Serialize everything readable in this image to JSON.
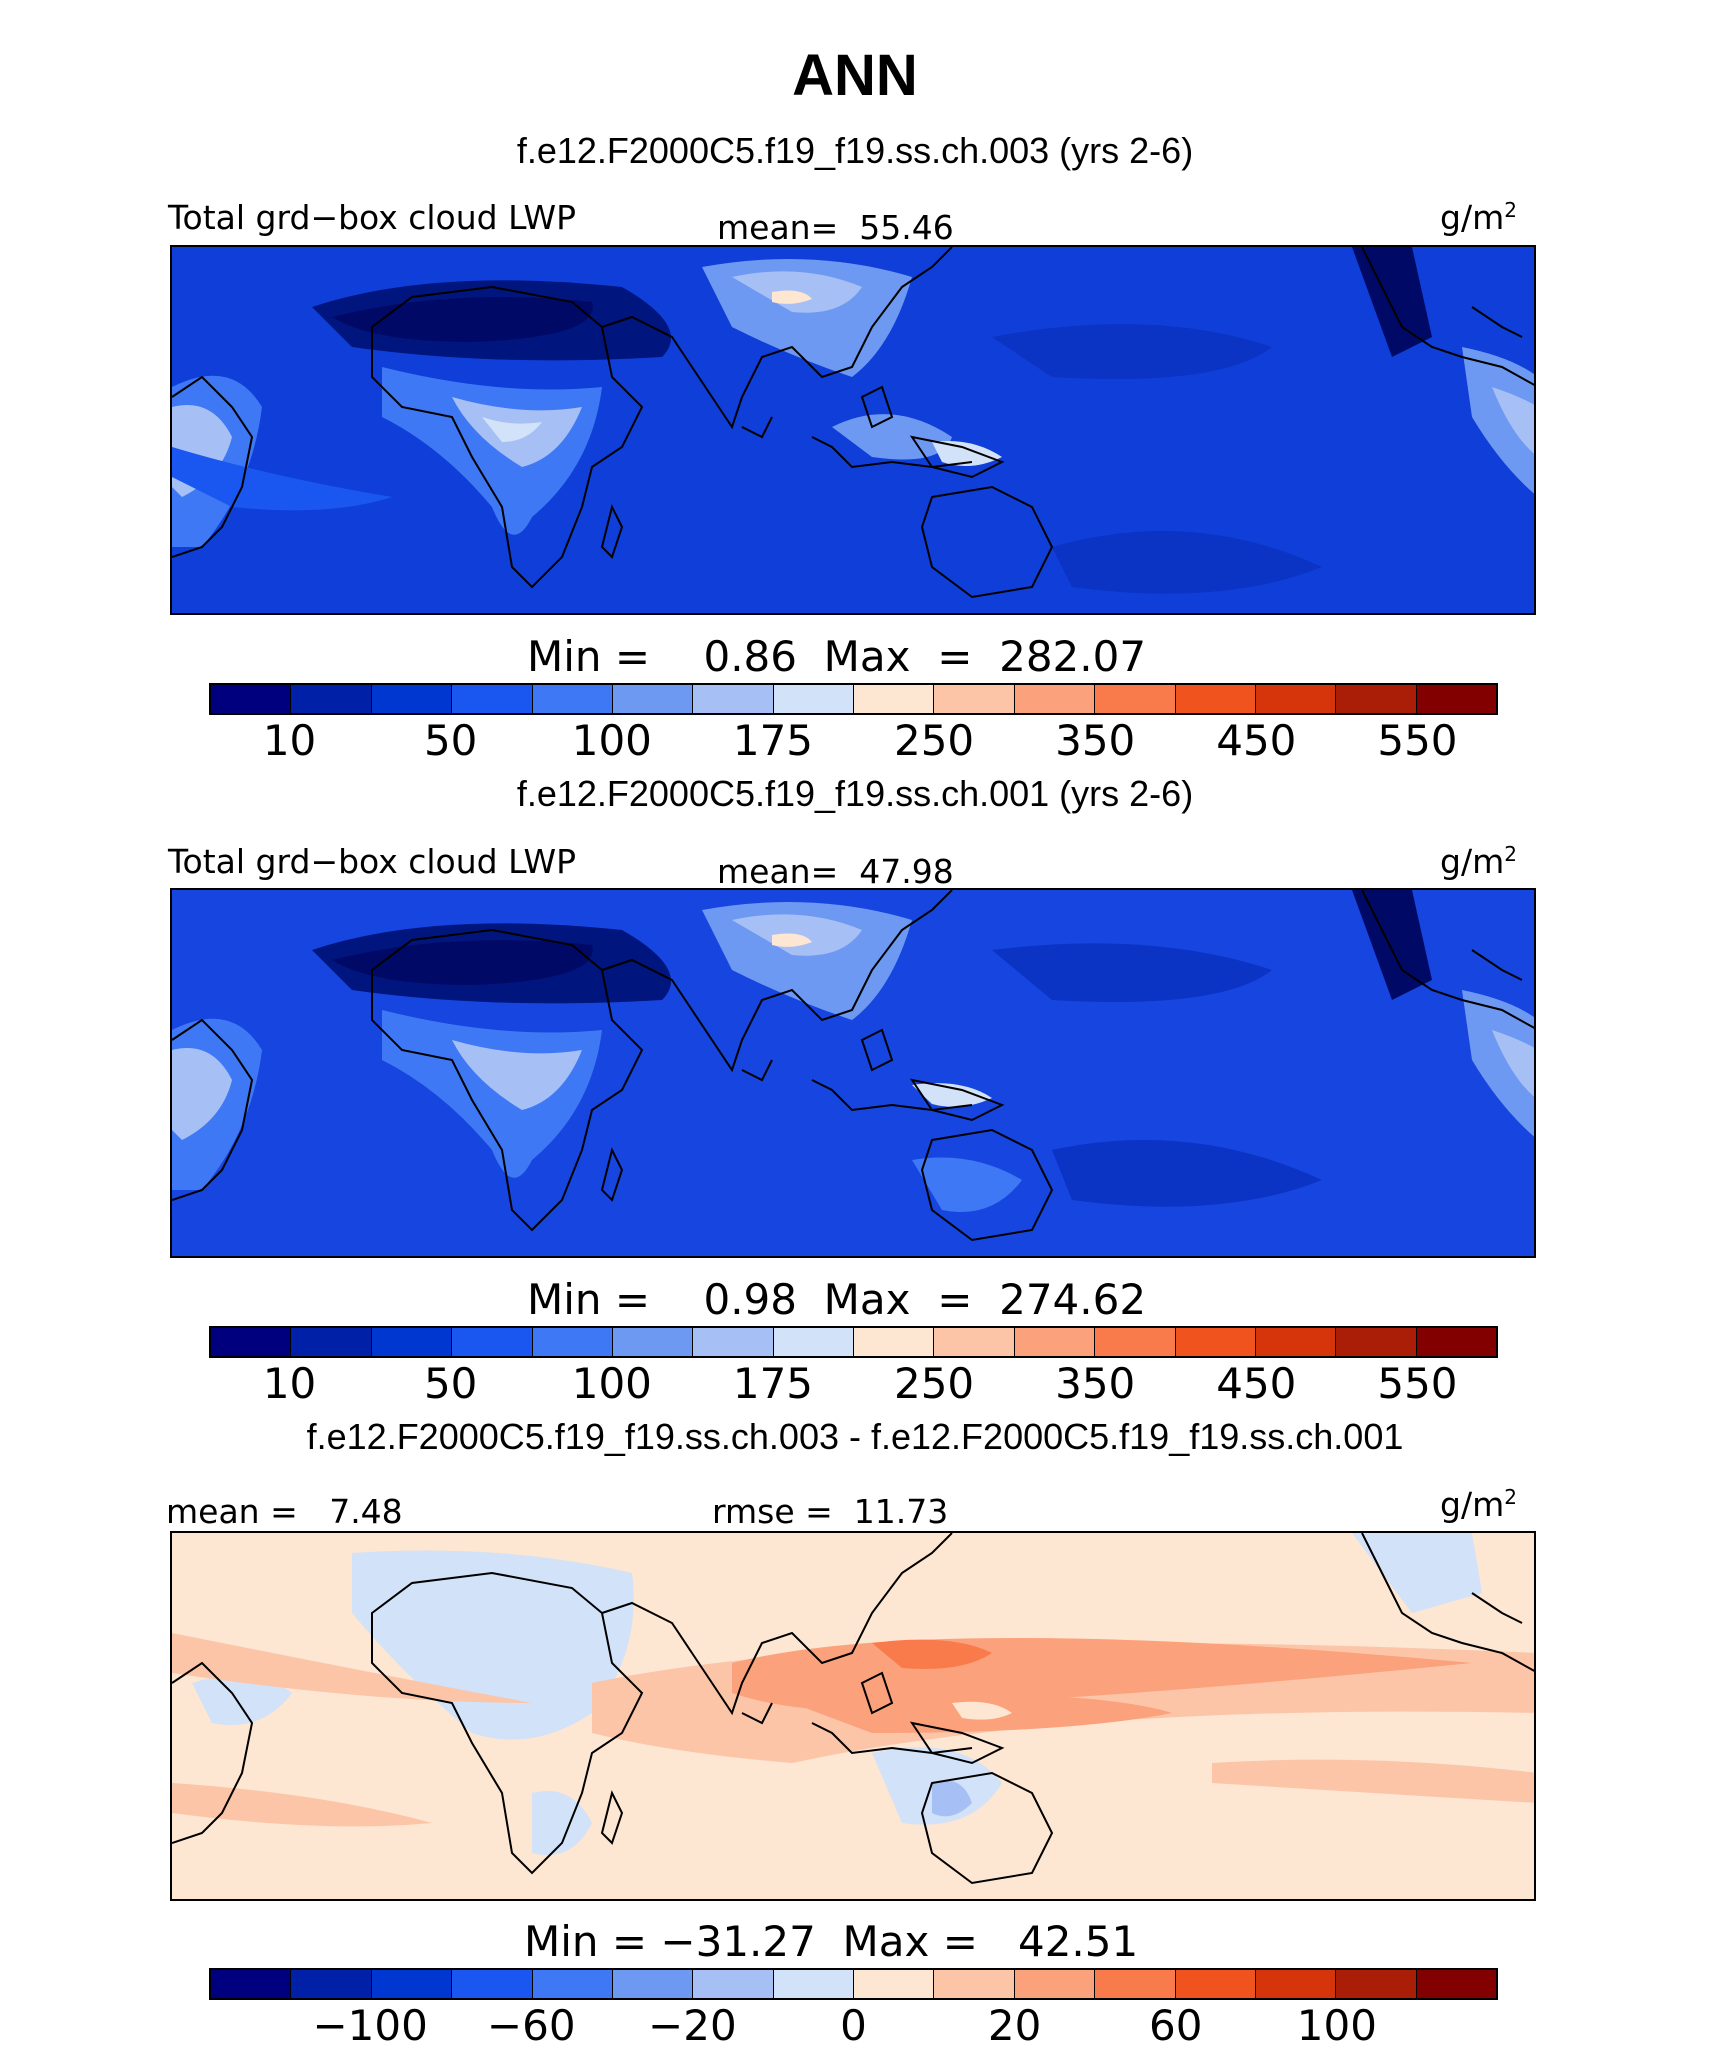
{
  "figure": {
    "title": "ANN"
  },
  "colorscale": [
    "#00007f",
    "#0020a8",
    "#0037d0",
    "#1a56f0",
    "#3f78f4",
    "#6e99f2",
    "#a6c0f5",
    "#d2e2f8",
    "#fde6d2",
    "#fcc5a8",
    "#fba17c",
    "#f97b4b",
    "#f0531e",
    "#d6350c",
    "#aa1d06",
    "#830000"
  ],
  "panels": [
    {
      "case_title": "f.e12.F2000C5.f19_f19.ss.ch.003 (yrs 2-6)",
      "variable": "Total grd−box cloud LWP",
      "stat_text": "mean=  55.46",
      "units": "g/m",
      "units_exp": "2",
      "minmax_text": "Min =    0.86  Max  =  282.07",
      "colorbar_ticks": [
        "10",
        "50",
        "100",
        "175",
        "250",
        "350",
        "450",
        "550"
      ]
    },
    {
      "case_title": "f.e12.F2000C5.f19_f19.ss.ch.001 (yrs 2-6)",
      "variable": "Total grd−box cloud LWP",
      "stat_text": "mean=  47.98",
      "units": "g/m",
      "units_exp": "2",
      "minmax_text": "Min =    0.98  Max  =  274.62",
      "colorbar_ticks": [
        "10",
        "50",
        "100",
        "175",
        "250",
        "350",
        "450",
        "550"
      ]
    },
    {
      "case_title": "f.e12.F2000C5.f19_f19.ss.ch.003 - f.e12.F2000C5.f19_f19.ss.ch.001",
      "stat_left_text": "mean =   7.48",
      "stat_text": "rmse =  11.73",
      "units": "g/m",
      "units_exp": "2",
      "minmax_text": "Min = −31.27  Max =   42.51",
      "colorbar_ticks": [
        "−100",
        "−60",
        "−20",
        "0",
        "20",
        "60",
        "100"
      ]
    }
  ]
}
